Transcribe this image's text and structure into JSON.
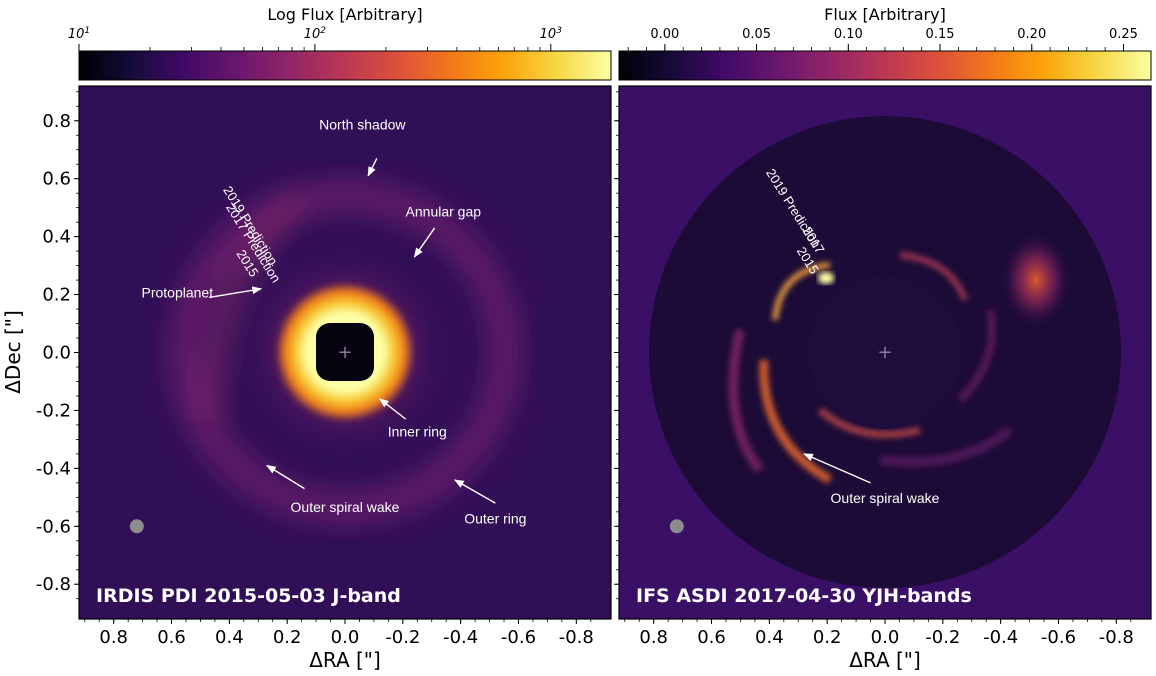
{
  "chart_data": [
    {
      "type": "image",
      "panel_title": "IRDIS PDI 2015-05-03 J-band",
      "xlabel": "ΔRA [\"]",
      "ylabel": "ΔDec [\"]",
      "xlim": [
        0.92,
        -0.92
      ],
      "ylim": [
        -0.92,
        0.92
      ],
      "xticks": [
        0.8,
        0.6,
        0.4,
        0.2,
        0.0,
        -0.2,
        -0.4,
        -0.6,
        -0.8
      ],
      "xtick_labels": [
        "0.8",
        "0.6",
        "0.4",
        "0.2",
        "0.0",
        "-0.2",
        "-0.4",
        "-0.6",
        "-0.8"
      ],
      "yticks": [
        0.8,
        0.6,
        0.4,
        0.2,
        0.0,
        -0.2,
        -0.4,
        -0.6,
        -0.8
      ],
      "ytick_labels": [
        "0.8",
        "0.6",
        "0.4",
        "0.2",
        "0.0",
        "-0.2",
        "-0.4",
        "-0.6",
        "-0.8"
      ],
      "colorbar": {
        "label": "Log Flux [Arbitrary]",
        "scale": "log",
        "range": [
          10,
          1800
        ],
        "ticks": [
          10,
          100,
          1000
        ],
        "tick_base": "10",
        "tick_exponents": [
          "1",
          "2",
          "3"
        ]
      },
      "features": {
        "mask_radius": 0.1,
        "inner_ring_radius": 0.2,
        "outer_ring_radius": 0.56,
        "beam": [
          0.72,
          -0.6
        ]
      },
      "annotations": [
        {
          "text": "North shadow",
          "x": -0.06,
          "y": 0.77,
          "arrow_from": [
            -0.11,
            0.67
          ],
          "arrow_to": [
            -0.08,
            0.61
          ]
        },
        {
          "text": "Annular gap",
          "x": -0.34,
          "y": 0.47,
          "arrow_from": [
            -0.31,
            0.43
          ],
          "arrow_to": [
            -0.24,
            0.33
          ]
        },
        {
          "text": "Protoplanet",
          "x": 0.58,
          "y": 0.19,
          "arrow_from": [
            0.47,
            0.19
          ],
          "arrow_to": [
            0.29,
            0.22
          ]
        },
        {
          "text": "Inner ring",
          "x": -0.25,
          "y": -0.29,
          "arrow_from": [
            -0.21,
            -0.23
          ],
          "arrow_to": [
            -0.12,
            -0.16
          ]
        },
        {
          "text": "Outer spiral wake",
          "x": 0.0,
          "y": -0.55,
          "arrow_from": [
            0.14,
            -0.47
          ],
          "arrow_to": [
            0.27,
            -0.39
          ]
        },
        {
          "text": "Outer ring",
          "x": -0.52,
          "y": -0.59,
          "arrow_from": [
            -0.52,
            -0.52
          ],
          "arrow_to": [
            -0.38,
            -0.44
          ]
        }
      ],
      "predictions": [
        {
          "text": "2019 Prediction",
          "x": 0.34,
          "y": 0.43
        },
        {
          "text": "2017 Prediction",
          "x": 0.33,
          "y": 0.37
        },
        {
          "text": "2015",
          "x": 0.35,
          "y": 0.3
        }
      ]
    },
    {
      "type": "image",
      "panel_title": "IFS ASDI 2017-04-30 YJH-bands",
      "xlabel": "ΔRA [\"]",
      "ylabel": "",
      "xlim": [
        0.92,
        -0.92
      ],
      "ylim": [
        -0.92,
        0.92
      ],
      "xticks": [
        0.8,
        0.6,
        0.4,
        0.2,
        0.0,
        -0.2,
        -0.4,
        -0.6,
        -0.8
      ],
      "xtick_labels": [
        "0.8",
        "0.6",
        "0.4",
        "0.2",
        "0.0",
        "-0.2",
        "-0.4",
        "-0.6",
        "-0.8"
      ],
      "colorbar": {
        "label": "Flux [Arbitrary]",
        "scale": "linear",
        "range": [
          -0.025,
          0.265
        ],
        "ticks": [
          0.0,
          0.05,
          0.1,
          0.15,
          0.2,
          0.25
        ],
        "tick_labels": [
          "0.00",
          "0.05",
          "0.10",
          "0.15",
          "0.20",
          "0.25"
        ]
      },
      "features": {
        "mask_radius": 0.26,
        "field_radius": 0.81,
        "beam": [
          0.72,
          -0.6
        ]
      },
      "annotations": [
        {
          "text": "Outer spiral wake",
          "x": 0.0,
          "y": -0.52,
          "arrow_from": [
            0.05,
            -0.45
          ],
          "arrow_to": [
            0.28,
            -0.35
          ]
        }
      ],
      "predictions": [
        {
          "text": "2019 Prediction",
          "x": 0.33,
          "y": 0.49
        },
        {
          "text": "2017",
          "x": 0.26,
          "y": 0.38
        },
        {
          "text": "2015",
          "x": 0.28,
          "y": 0.31
        }
      ]
    }
  ]
}
